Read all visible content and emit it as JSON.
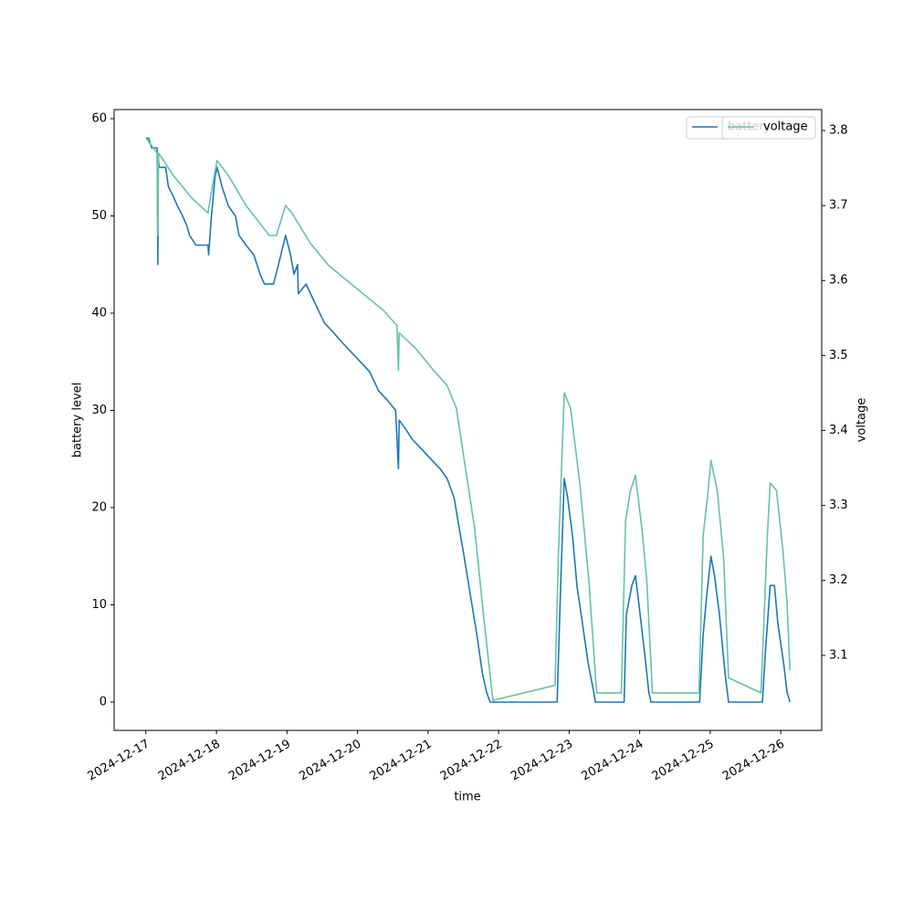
{
  "chart_data": {
    "type": "line",
    "xlabel": "time",
    "ylabel": "battery level",
    "y2label": "voltage",
    "xlim": [
      20073.55,
      20083.58
    ],
    "ylim": [
      -2.91,
      60.94
    ],
    "y2lim": [
      3.0,
      3.828
    ],
    "xticks": [
      {
        "value": 20074,
        "label": "2024-12-17"
      },
      {
        "value": 20075,
        "label": "2024-12-18"
      },
      {
        "value": 20076,
        "label": "2024-12-19"
      },
      {
        "value": 20077,
        "label": "2024-12-20"
      },
      {
        "value": 20078,
        "label": "2024-12-21"
      },
      {
        "value": 20079,
        "label": "2024-12-22"
      },
      {
        "value": 20080,
        "label": "2024-12-23"
      },
      {
        "value": 20081,
        "label": "2024-12-24"
      },
      {
        "value": 20082,
        "label": "2024-12-25"
      },
      {
        "value": 20083,
        "label": "2024-12-26"
      }
    ],
    "yticks": [
      0,
      10,
      20,
      30,
      40,
      50,
      60
    ],
    "y2ticks": [
      3.1,
      3.2,
      3.3,
      3.4,
      3.5,
      3.6,
      3.7,
      3.8
    ],
    "series": [
      {
        "name": "battery",
        "color": "#1f77b4",
        "x": [
          20074.0,
          20074.04,
          20074.08,
          20074.16,
          20074.17,
          20074.175,
          20074.19,
          20074.28,
          20074.32,
          20074.39,
          20074.45,
          20074.52,
          20074.58,
          20074.62,
          20074.71,
          20074.88,
          20074.89,
          20074.93,
          20074.98,
          20075.01,
          20075.08,
          20075.17,
          20075.27,
          20075.32,
          20075.42,
          20075.53,
          20075.62,
          20075.68,
          20075.81,
          20075.88,
          20075.98,
          20076.05,
          20076.1,
          20076.15,
          20076.16,
          20076.27,
          20076.4,
          20076.53,
          20076.66,
          20076.78,
          20076.91,
          20077.04,
          20077.17,
          20077.3,
          20077.43,
          20077.54,
          20077.58,
          20077.59,
          20077.69,
          20077.78,
          20077.91,
          20078.04,
          20078.17,
          20078.27,
          20078.37,
          20078.44,
          20078.51,
          20078.6,
          20078.69,
          20078.77,
          20078.83,
          20078.88,
          20079.83,
          20079.88,
          20079.93,
          20079.98,
          20080.05,
          20080.11,
          20080.19,
          20080.27,
          20080.35,
          20080.37,
          20080.78,
          20080.81,
          20080.89,
          20080.94,
          20080.99,
          20081.07,
          20081.13,
          20081.16,
          20081.85,
          20081.9,
          20081.95,
          20082.01,
          20082.06,
          20082.13,
          20082.21,
          20082.26,
          20082.74,
          20082.78,
          20082.85,
          20082.91,
          20082.96,
          20083.04,
          20083.09,
          20083.13
        ],
        "values": [
          58,
          58,
          57,
          57,
          45,
          56,
          55,
          55,
          53,
          52,
          51,
          50,
          49,
          48,
          47,
          47,
          46,
          50,
          54,
          55,
          53,
          51,
          50,
          48,
          47,
          46,
          44,
          43,
          43,
          45,
          48,
          46,
          44,
          45,
          42,
          43,
          41,
          39,
          38,
          37,
          36,
          35,
          34,
          32,
          31,
          30,
          24,
          29,
          28,
          27,
          26,
          25,
          24,
          23,
          21,
          18,
          15,
          11,
          7,
          3,
          1,
          0,
          0,
          12,
          23,
          21,
          17,
          12,
          8,
          4,
          1,
          0,
          0,
          9,
          12,
          13,
          10,
          5,
          1,
          0,
          0,
          7,
          11,
          15,
          13,
          9,
          3,
          0,
          0,
          5,
          12,
          12,
          8,
          4,
          1,
          0
        ]
      },
      {
        "name": "voltage",
        "color": "#66c2a5",
        "axis": "y2",
        "x": [
          20074.0,
          20074.08,
          20074.16,
          20074.17,
          20074.18,
          20074.39,
          20074.65,
          20074.88,
          20074.95,
          20075.01,
          20075.17,
          20075.42,
          20075.75,
          20075.85,
          20075.98,
          20076.07,
          20076.33,
          20076.59,
          20076.85,
          20077.11,
          20077.37,
          20077.56,
          20077.58,
          20077.59,
          20077.82,
          20078.08,
          20078.27,
          20078.4,
          20078.53,
          20078.66,
          20078.79,
          20078.92,
          20079.8,
          20079.85,
          20079.93,
          20080.02,
          20080.15,
          20080.28,
          20080.39,
          20080.74,
          20080.8,
          20080.87,
          20080.94,
          20081.03,
          20081.1,
          20081.18,
          20081.84,
          20081.9,
          20081.97,
          20082.01,
          20082.1,
          20082.19,
          20082.26,
          20082.72,
          20082.81,
          20082.85,
          20082.94,
          20083.03,
          20083.09,
          20083.13
        ],
        "values": [
          3.79,
          3.78,
          3.77,
          3.66,
          3.77,
          3.74,
          3.71,
          3.69,
          3.73,
          3.76,
          3.74,
          3.7,
          3.66,
          3.66,
          3.7,
          3.69,
          3.65,
          3.62,
          3.6,
          3.58,
          3.56,
          3.54,
          3.48,
          3.53,
          3.51,
          3.48,
          3.46,
          3.43,
          3.35,
          3.27,
          3.15,
          3.04,
          3.06,
          3.24,
          3.45,
          3.43,
          3.33,
          3.2,
          3.05,
          3.05,
          3.28,
          3.32,
          3.34,
          3.27,
          3.2,
          3.05,
          3.05,
          3.26,
          3.32,
          3.36,
          3.32,
          3.23,
          3.07,
          3.05,
          3.26,
          3.33,
          3.32,
          3.24,
          3.17,
          3.08
        ]
      }
    ]
  }
}
